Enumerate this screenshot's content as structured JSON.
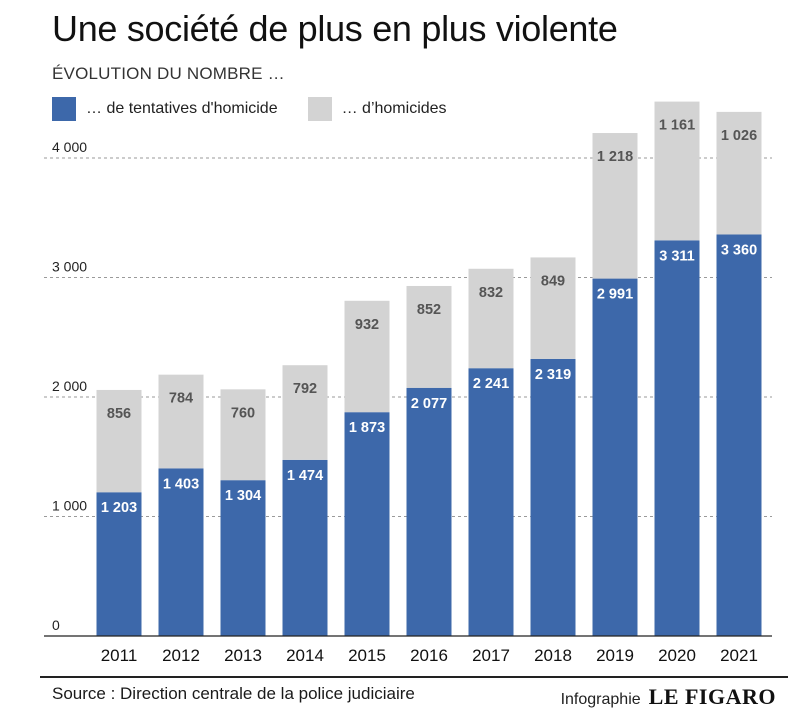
{
  "header": {
    "title": "Une société de plus en plus violente",
    "subtitle": "ÉVOLUTION DU NOMBRE …"
  },
  "legend": {
    "items": [
      {
        "label": "… de tentatives d'homicide",
        "color": "#3d68aa"
      },
      {
        "label": "… d’homicides",
        "color": "#d3d3d3"
      }
    ]
  },
  "footer": {
    "source": "Source : Direction centrale de la police judiciaire",
    "credit_label": "Infographie",
    "logo": "LE FIGARO"
  },
  "chart_data": {
    "type": "bar",
    "stacked": true,
    "categories": [
      "2011",
      "2012",
      "2013",
      "2014",
      "2015",
      "2016",
      "2017",
      "2018",
      "2019",
      "2020",
      "2021"
    ],
    "series": [
      {
        "name": "… de tentatives d'homicide",
        "color": "#3d68aa",
        "values": [
          1203,
          1403,
          1304,
          1474,
          1873,
          2077,
          2241,
          2319,
          2991,
          3311,
          3360
        ],
        "labels": [
          "1 203",
          "1 403",
          "1 304",
          "1 474",
          "1 873",
          "2 077",
          "2 241",
          "2 319",
          "2 991",
          "3 311",
          "3 360"
        ]
      },
      {
        "name": "… d’homicides",
        "color": "#d3d3d3",
        "values": [
          856,
          784,
          760,
          792,
          932,
          852,
          832,
          849,
          1218,
          1161,
          1026
        ],
        "labels": [
          "856",
          "784",
          "760",
          "792",
          "932",
          "852",
          "832",
          "849",
          "1 218",
          "1 161",
          "1 026"
        ]
      }
    ],
    "yticks": [
      0,
      1000,
      2000,
      3000,
      4000
    ],
    "ytick_labels": [
      "0",
      "1 000",
      "2 000",
      "3 000",
      "4 000"
    ],
    "ylim": [
      0,
      4200
    ],
    "grid": true
  }
}
